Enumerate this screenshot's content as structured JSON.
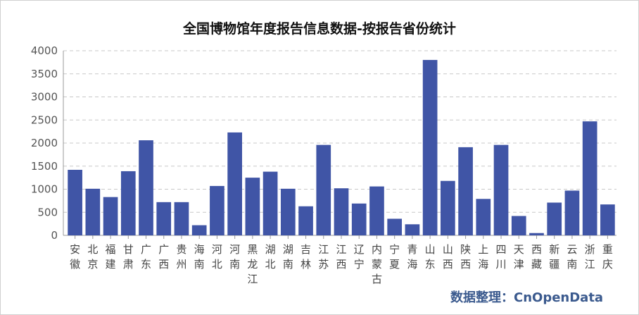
{
  "chart_data": {
    "type": "bar",
    "title": "全国博物馆年度报告信息数据-按报告省份统计",
    "xlabel": "",
    "ylabel": "",
    "ylim": [
      0,
      4000
    ],
    "yticks": [
      0,
      500,
      1000,
      1500,
      2000,
      2500,
      3000,
      3500,
      4000
    ],
    "grid": true,
    "bar_color": "#4055a6",
    "categories": [
      "安徽",
      "北京",
      "福建",
      "甘肃",
      "广东",
      "广西",
      "贵州",
      "海南",
      "河北",
      "河南",
      "黑龙江",
      "湖北",
      "湖南",
      "吉林",
      "江苏",
      "江西",
      "辽宁",
      "内蒙古",
      "宁夏",
      "青海",
      "山东",
      "山西",
      "陕西",
      "上海",
      "四川",
      "天津",
      "西藏",
      "新疆",
      "云南",
      "浙江",
      "重庆"
    ],
    "values": [
      1420,
      1010,
      830,
      1390,
      2060,
      720,
      720,
      220,
      1070,
      2230,
      1250,
      1380,
      1010,
      630,
      1960,
      1020,
      690,
      1060,
      360,
      240,
      3800,
      1180,
      1910,
      790,
      1960,
      420,
      50,
      710,
      970,
      2470,
      670
    ]
  },
  "credit": "数据整理：CnOpenData"
}
